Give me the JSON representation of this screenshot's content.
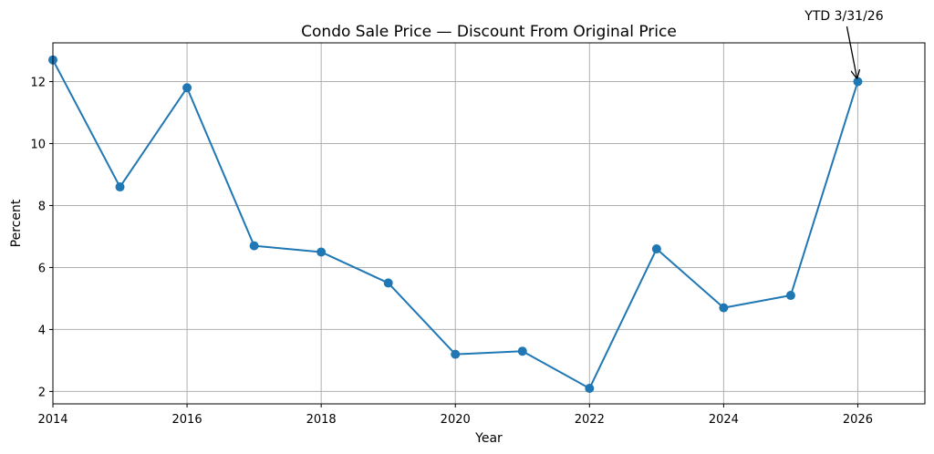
{
  "chart_data": {
    "type": "line",
    "title": "Condo Sale Price — Discount From Original Price",
    "xlabel": "Year",
    "ylabel": "Percent",
    "xlim": [
      2014,
      2027
    ],
    "ylim": [
      1.6,
      13.25
    ],
    "xticks": [
      2014,
      2016,
      2018,
      2020,
      2022,
      2024,
      2026
    ],
    "yticks": [
      2,
      4,
      6,
      8,
      10,
      12
    ],
    "grid": true,
    "series": [
      {
        "color": "#1f77b4",
        "x": [
          2014,
          2015,
          2016,
          2017,
          2018,
          2019,
          2020,
          2021,
          2022,
          2023,
          2024,
          2025,
          2026
        ],
        "y": [
          12.7,
          8.6,
          11.8,
          6.7,
          6.5,
          5.5,
          3.2,
          3.3,
          2.1,
          6.6,
          4.7,
          5.1,
          12.0
        ]
      }
    ],
    "annotations": [
      {
        "text": "YTD 3/31/26",
        "x": 2026,
        "y": 12.0
      }
    ]
  }
}
